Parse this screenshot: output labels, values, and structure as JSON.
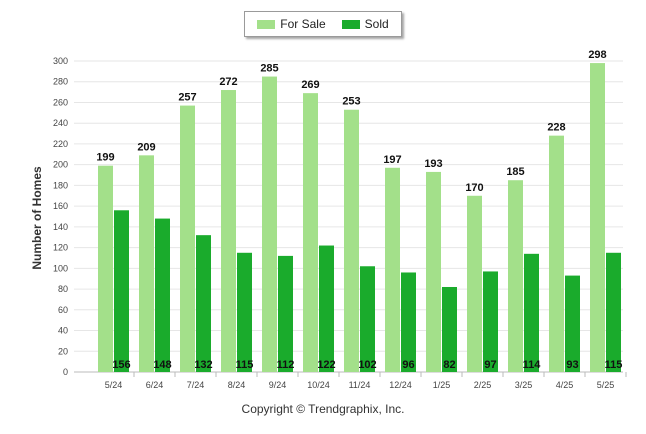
{
  "chart_data": {
    "type": "bar",
    "title": "",
    "xlabel": "",
    "ylabel": "Number of Homes",
    "categories": [
      "5/24",
      "6/24",
      "7/24",
      "8/24",
      "9/24",
      "10/24",
      "11/24",
      "12/24",
      "1/25",
      "2/25",
      "3/25",
      "4/25",
      "5/25"
    ],
    "series": [
      {
        "name": "For Sale",
        "color": "#a3e08a",
        "values": [
          199,
          209,
          257,
          272,
          285,
          269,
          253,
          197,
          193,
          170,
          185,
          228,
          298
        ]
      },
      {
        "name": "Sold",
        "color": "#1aab2c",
        "values": [
          156,
          148,
          132,
          115,
          112,
          122,
          102,
          96,
          82,
          97,
          114,
          93,
          115
        ]
      }
    ],
    "ylim": [
      0,
      300
    ],
    "yticks": [
      0,
      20,
      40,
      60,
      80,
      100,
      120,
      140,
      160,
      180,
      200,
      220,
      240,
      260,
      280,
      300
    ],
    "legend_position": "top-center",
    "grid": true
  },
  "footer": {
    "copyright": "Copyright © Trendgraphix, Inc."
  }
}
